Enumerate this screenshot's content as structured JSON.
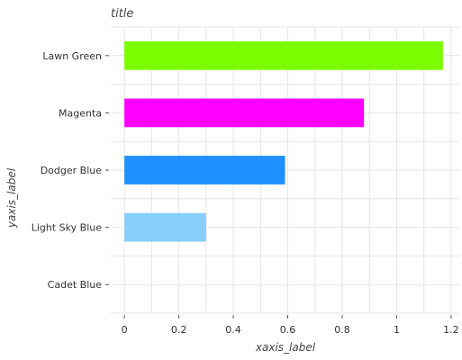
{
  "chart_data": {
    "type": "bar",
    "orientation": "horizontal",
    "title": "title",
    "xlabel": "xaxis_label",
    "ylabel": "yaxis_label",
    "categories": [
      "Cadet Blue",
      "Light Sky Blue",
      "Dodger Blue",
      "Magenta",
      "Lawn Green"
    ],
    "values": [
      0.0,
      0.3,
      0.59,
      0.88,
      1.17
    ],
    "colors": [
      "#5f9ea0",
      "#87cefa",
      "#1e90ff",
      "#ff00ff",
      "#7cfc00"
    ],
    "xlim": [
      -0.05,
      1.23
    ],
    "xticks": [
      0,
      0.2,
      0.4,
      0.6,
      0.8,
      1,
      1.2
    ],
    "xtick_labels": [
      "0",
      "0.2",
      "0.4",
      "0.6",
      "0.8",
      "1",
      "1.2"
    ],
    "grid": true
  }
}
